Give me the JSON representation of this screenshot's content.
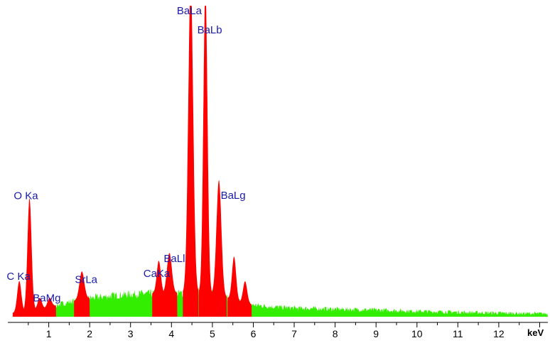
{
  "chart_data": {
    "type": "area",
    "title": "",
    "xlabel": "keV",
    "ylabel": "",
    "xlim": [
      0,
      13.2
    ],
    "ylim": [
      0,
      100
    ],
    "grid": false,
    "x_ticks": [
      1,
      2,
      3,
      4,
      5,
      6,
      7,
      8,
      9,
      10,
      11,
      12
    ],
    "colors": {
      "peaks": "#ff0000",
      "background": "#33ee00",
      "labels": "#1a1aa6",
      "axis": "#000000"
    },
    "background_profile": {
      "x": [
        0.15,
        0.5,
        1.0,
        1.5,
        2.0,
        2.5,
        3.0,
        3.5,
        4.0,
        4.5,
        4.8,
        5.2,
        5.6,
        6.0,
        6.5,
        7.0,
        8.0,
        9.0,
        10.0,
        11.0,
        12.0,
        13.2
      ],
      "y": [
        1.2,
        2.0,
        3.0,
        4.8,
        6.0,
        6.7,
        7.3,
        7.5,
        7.5,
        7.7,
        7.9,
        6.8,
        5.0,
        3.8,
        3.2,
        2.8,
        2.5,
        2.2,
        1.8,
        1.5,
        1.2,
        1.0
      ]
    },
    "peaks": [
      {
        "x": 0.28,
        "y": 10,
        "width": 0.05
      },
      {
        "x": 0.53,
        "y": 36,
        "width": 0.05
      },
      {
        "x": 0.78,
        "y": 3.5,
        "width": 0.05
      },
      {
        "x": 1.02,
        "y": 3.0,
        "width": 0.05
      },
      {
        "x": 1.81,
        "y": 9.0,
        "width": 0.06
      },
      {
        "x": 3.69,
        "y": 10.5,
        "width": 0.05
      },
      {
        "x": 3.95,
        "y": 13,
        "width": 0.06
      },
      {
        "x": 4.47,
        "y": 100,
        "width": 0.06
      },
      {
        "x": 4.83,
        "y": 98,
        "width": 0.05
      },
      {
        "x": 5.16,
        "y": 37,
        "width": 0.06
      },
      {
        "x": 5.53,
        "y": 14,
        "width": 0.05
      },
      {
        "x": 5.8,
        "y": 7,
        "width": 0.05
      }
    ],
    "annotations": [
      {
        "text": "C Ka",
        "x": 0.28,
        "y": 10
      },
      {
        "text": "O Ka",
        "x": 0.53,
        "y": 36
      },
      {
        "text": "BaMg",
        "x": 0.78,
        "y": 3.5
      },
      {
        "text": "SrLa",
        "x": 1.81,
        "y": 9.0
      },
      {
        "text": "CaKa",
        "x": 3.69,
        "y": 10.5
      },
      {
        "text": "BaLl",
        "x": 3.95,
        "y": 13
      },
      {
        "text": "BaLa",
        "x": 4.47,
        "y": 100
      },
      {
        "text": "BaLb",
        "x": 4.83,
        "y": 98
      },
      {
        "text": "BaLg",
        "x": 5.16,
        "y": 37
      }
    ]
  }
}
